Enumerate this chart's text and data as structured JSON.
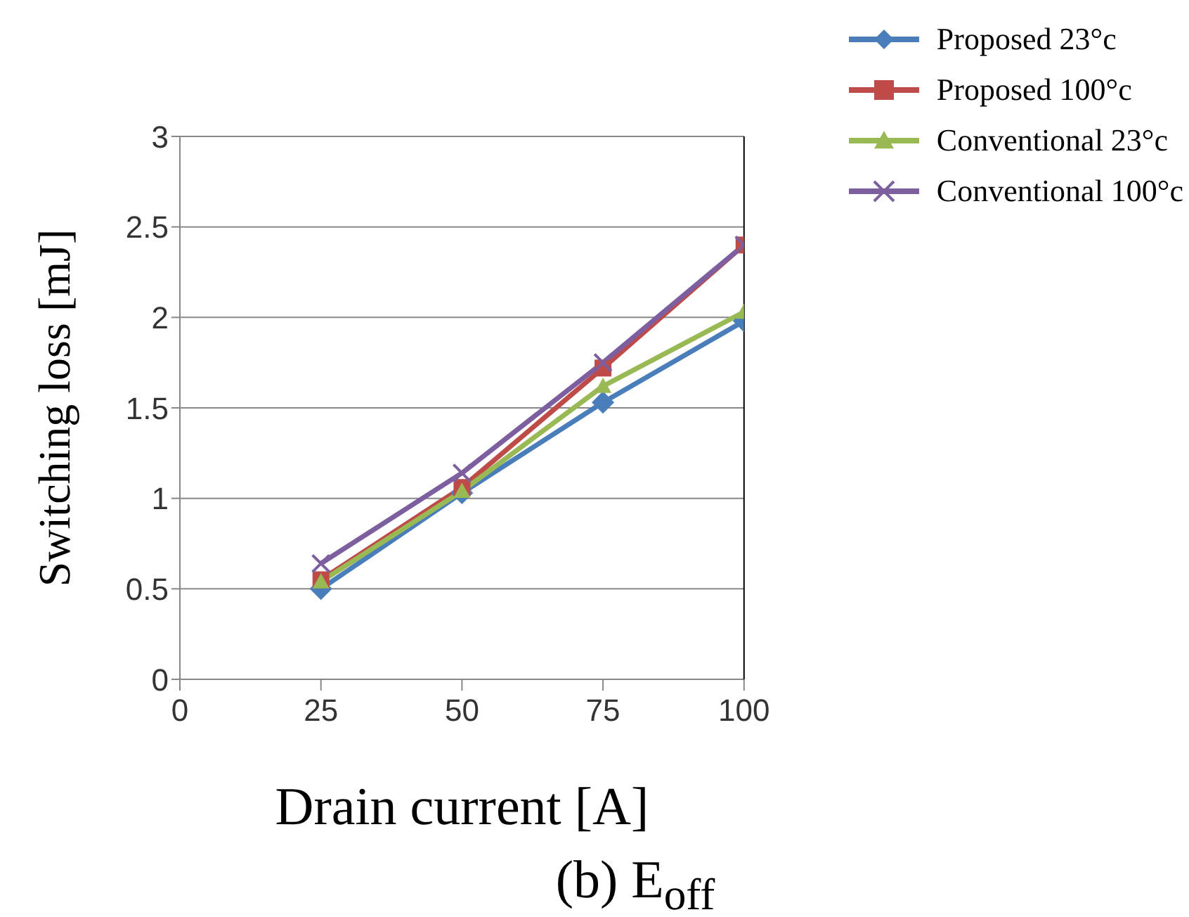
{
  "chart_data": {
    "type": "line",
    "title": "(b) E$_{off}$",
    "xlabel": "Drain current [A]",
    "ylabel": "Switching loss [mJ]",
    "x": [
      25,
      50,
      75,
      100
    ],
    "series": [
      {
        "name": "Proposed 23°c",
        "color": "#4a7ebb",
        "marker": "diamond",
        "values": [
          0.5,
          1.03,
          1.53,
          1.98
        ]
      },
      {
        "name": "Proposed 100°c",
        "color": "#be4b48",
        "marker": "square",
        "values": [
          0.55,
          1.06,
          1.72,
          2.4
        ]
      },
      {
        "name": "Conventional 23°c",
        "color": "#98b954",
        "marker": "triangle",
        "values": [
          0.54,
          1.04,
          1.62,
          2.03
        ]
      },
      {
        "name": "Conventional 100°c",
        "color": "#7d5fa0",
        "marker": "cross",
        "values": [
          0.64,
          1.14,
          1.75,
          2.4
        ]
      }
    ],
    "xlim": [
      0,
      100
    ],
    "xticks": [
      0,
      25,
      50,
      75,
      100
    ],
    "ylim": [
      0,
      3
    ],
    "yticks": [
      0,
      0.5,
      1,
      1.5,
      2,
      2.5,
      3
    ],
    "grid": "y",
    "legend": "top right",
    "line_style": "solid"
  }
}
